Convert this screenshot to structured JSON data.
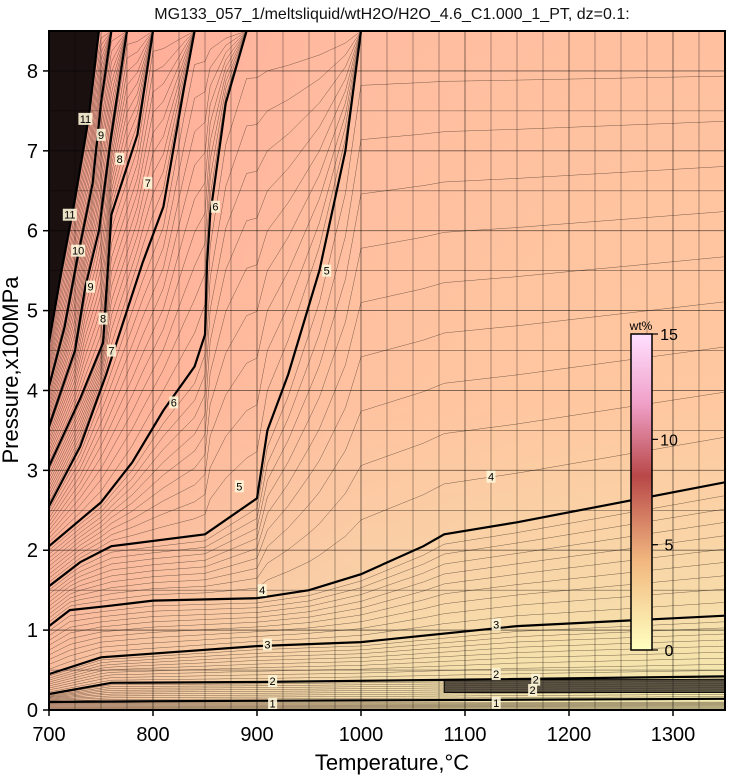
{
  "chart_data": {
    "type": "contour",
    "title": "MG133_057_1/meltsliquid/wtH2O/H2O_4.6_C1.000_1_PT, dz=0.1:",
    "xlabel": "Temperature,°C",
    "ylabel": "Pressure,x100MPa",
    "xlim": [
      700,
      1350
    ],
    "ylim": [
      0,
      8.5
    ],
    "x_ticks": [
      700,
      800,
      900,
      1000,
      1100,
      1200,
      1300
    ],
    "y_ticks": [
      0,
      1,
      2,
      3,
      4,
      5,
      6,
      7,
      8
    ],
    "grid": true,
    "colorbar": {
      "title": "wt%",
      "range": [
        0,
        15
      ],
      "ticks": [
        0,
        5,
        10,
        15
      ],
      "colors": [
        "#ffffc0",
        "#f0c080",
        "#b04040",
        "#ffc8f0"
      ]
    },
    "labeled_contours": [
      {
        "level": 1,
        "points": [
          [
            700,
            0.1
          ],
          [
            800,
            0.11
          ],
          [
            1000,
            0.12
          ],
          [
            1350,
            0.14
          ]
        ]
      },
      {
        "level": 2,
        "points": [
          [
            700,
            0.2
          ],
          [
            760,
            0.34
          ],
          [
            900,
            0.35
          ],
          [
            1100,
            0.38
          ],
          [
            1350,
            0.42
          ]
        ]
      },
      {
        "level": 3,
        "points": [
          [
            700,
            0.45
          ],
          [
            750,
            0.66
          ],
          [
            900,
            0.8
          ],
          [
            1000,
            0.85
          ],
          [
            1150,
            1.05
          ],
          [
            1350,
            1.18
          ]
        ]
      },
      {
        "level": 4,
        "points": [
          [
            700,
            1.05
          ],
          [
            720,
            1.25
          ],
          [
            755,
            1.3
          ],
          [
            800,
            1.37
          ],
          [
            900,
            1.4
          ],
          [
            950,
            1.5
          ],
          [
            1000,
            1.7
          ],
          [
            1060,
            2.05
          ],
          [
            1080,
            2.2
          ],
          [
            1150,
            2.35
          ],
          [
            1250,
            2.6
          ],
          [
            1350,
            2.85
          ]
        ]
      },
      {
        "level": 5,
        "points": [
          [
            700,
            1.55
          ],
          [
            730,
            1.85
          ],
          [
            760,
            2.05
          ],
          [
            850,
            2.2
          ],
          [
            900,
            2.65
          ],
          [
            910,
            3.5
          ],
          [
            930,
            4.2
          ],
          [
            960,
            5.5
          ],
          [
            985,
            7.0
          ],
          [
            1000,
            8.5
          ]
        ]
      },
      {
        "level": 6,
        "points": [
          [
            700,
            2.05
          ],
          [
            750,
            2.6
          ],
          [
            780,
            3.1
          ],
          [
            810,
            3.75
          ],
          [
            840,
            4.3
          ],
          [
            850,
            4.7
          ],
          [
            852,
            5.6
          ],
          [
            855,
            6.2
          ],
          [
            870,
            7.6
          ],
          [
            890,
            8.5
          ]
        ]
      },
      {
        "level": 7,
        "points": [
          [
            700,
            2.55
          ],
          [
            730,
            3.3
          ],
          [
            755,
            4.2
          ],
          [
            765,
            4.6
          ],
          [
            790,
            5.6
          ],
          [
            810,
            6.3
          ],
          [
            830,
            7.8
          ],
          [
            840,
            8.5
          ]
        ]
      },
      {
        "level": 8,
        "points": [
          [
            700,
            3.05
          ],
          [
            730,
            3.9
          ],
          [
            752,
            4.6
          ],
          [
            760,
            6.2
          ],
          [
            785,
            7.2
          ],
          [
            800,
            8.5
          ]
        ]
      },
      {
        "level": 9,
        "points": [
          [
            700,
            3.55
          ],
          [
            725,
            4.5
          ],
          [
            735,
            5.3
          ],
          [
            748,
            6.0
          ],
          [
            760,
            7.2
          ],
          [
            775,
            8.5
          ]
        ]
      },
      {
        "level": 10,
        "points": [
          [
            700,
            4.05
          ],
          [
            715,
            4.8
          ],
          [
            728,
            5.7
          ],
          [
            742,
            6.6
          ],
          [
            750,
            7.6
          ],
          [
            760,
            8.5
          ]
        ]
      },
      {
        "level": 11,
        "points": [
          [
            700,
            4.6
          ],
          [
            712,
            5.5
          ],
          [
            725,
            6.4
          ],
          [
            738,
            7.4
          ],
          [
            748,
            8.5
          ]
        ]
      }
    ],
    "contour_labels": [
      {
        "text": "1",
        "x": 915,
        "y": 0.08
      },
      {
        "text": "1",
        "x": 1130,
        "y": 0.09
      },
      {
        "text": "2",
        "x": 915,
        "y": 0.36
      },
      {
        "text": "2",
        "x": 1130,
        "y": 0.45
      },
      {
        "text": "2",
        "x": 1168,
        "y": 0.38
      },
      {
        "text": "2",
        "x": 1165,
        "y": 0.25
      },
      {
        "text": "3",
        "x": 910,
        "y": 0.82
      },
      {
        "text": "3",
        "x": 1130,
        "y": 1.07
      },
      {
        "text": "4",
        "x": 905,
        "y": 1.5
      },
      {
        "text": "4",
        "x": 1125,
        "y": 2.92
      },
      {
        "text": "5",
        "x": 883,
        "y": 2.8
      },
      {
        "text": "5",
        "x": 967,
        "y": 5.5
      },
      {
        "text": "6",
        "x": 820,
        "y": 3.85
      },
      {
        "text": "6",
        "x": 860,
        "y": 6.3
      },
      {
        "text": "7",
        "x": 760,
        "y": 4.5
      },
      {
        "text": "7",
        "x": 795,
        "y": 6.6
      },
      {
        "text": "8",
        "x": 752,
        "y": 4.9
      },
      {
        "text": "8",
        "x": 768,
        "y": 6.9
      },
      {
        "text": "9",
        "x": 740,
        "y": 5.3
      },
      {
        "text": "9",
        "x": 750,
        "y": 7.2
      },
      {
        "text": "10",
        "x": 728,
        "y": 5.75
      },
      {
        "text": "11",
        "x": 720,
        "y": 6.2
      },
      {
        "text": "11",
        "x": 735,
        "y": 7.4
      }
    ],
    "overlay_band": {
      "x": [
        1080,
        1350
      ],
      "y": [
        0.22,
        0.38
      ]
    }
  }
}
